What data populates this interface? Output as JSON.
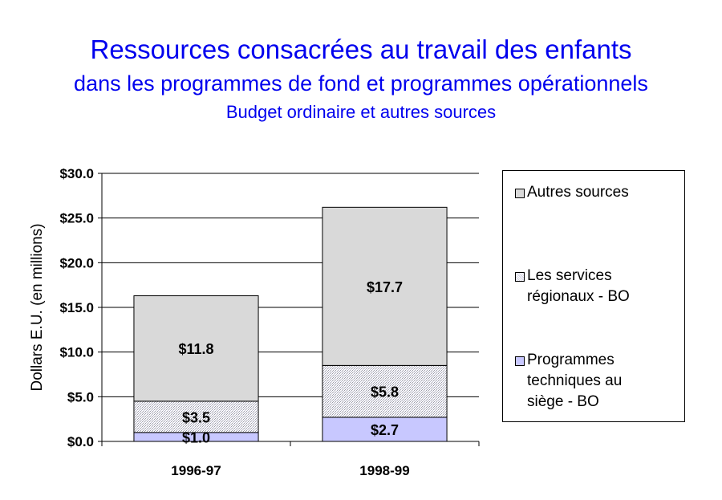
{
  "titles": {
    "line1": "Ressources consacrées au travail des enfants",
    "line2": "dans les programmes de fond et programmes opérationnels",
    "line3": "Budget ordinaire et autres sources"
  },
  "colors": {
    "title": "#0000ee",
    "autres": "#d9d9d9",
    "services": "#e4e4ee",
    "programmes": "#c8c8ff"
  },
  "chart_data": {
    "type": "bar",
    "stacked": true,
    "categories": [
      "1996-97",
      "1998-99"
    ],
    "series": [
      {
        "name": "Programmes techniques au siège - BO",
        "values": [
          1.0,
          2.7
        ],
        "labels": [
          "$1.0",
          "$2.7"
        ]
      },
      {
        "name": "Les services régionaux - BO",
        "values": [
          3.5,
          5.8
        ],
        "labels": [
          "$3.5",
          "$5.8"
        ]
      },
      {
        "name": "Autres sources",
        "values": [
          11.8,
          17.7
        ],
        "labels": [
          "$11.8",
          "$17.7"
        ]
      }
    ],
    "ylabel": "Dollars E.U. (en millions)",
    "xlabel": "",
    "ylim": [
      0,
      30
    ],
    "yticks": [
      0,
      5,
      10,
      15,
      20,
      25,
      30
    ],
    "ytick_labels": [
      "$0.0",
      "$5.0",
      "$10.0",
      "$15.0",
      "$20.0",
      "$25.0",
      "$30.0"
    ],
    "grid": true,
    "legend_position": "right"
  },
  "legend": {
    "autres": "Autres sources",
    "services_l1": "Les services",
    "services_l2": "régionaux - BO",
    "prog_l1": "Programmes",
    "prog_l2": "techniques au",
    "prog_l3": "siège - BO"
  }
}
